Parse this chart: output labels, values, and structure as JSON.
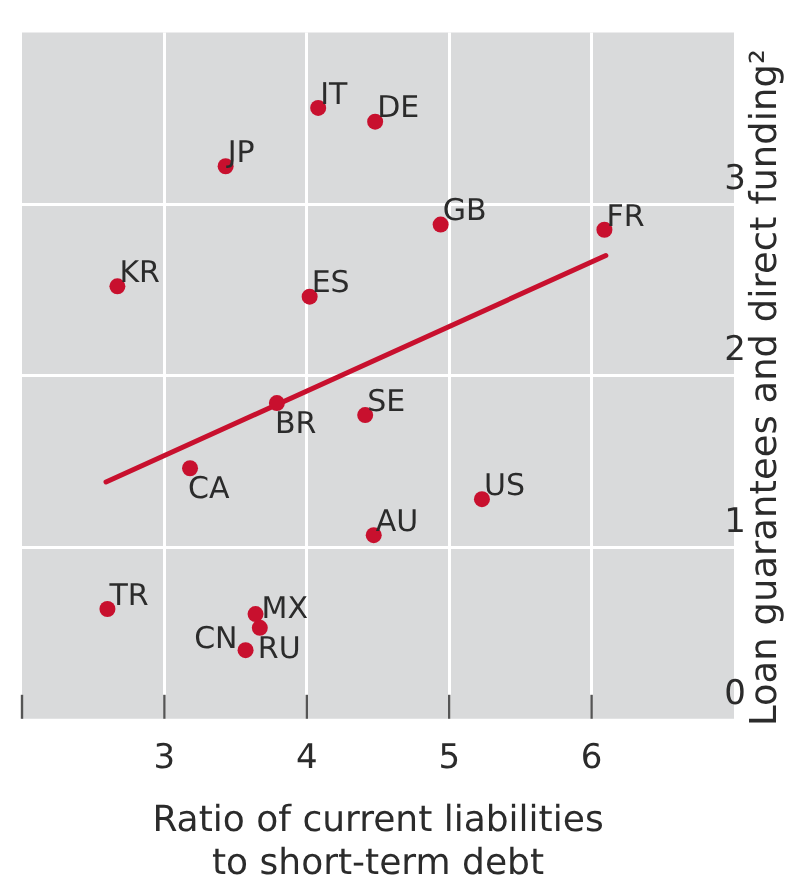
{
  "chart_data": {
    "type": "scatter",
    "xlabel": "Ratio of current liabilities to short-term debt",
    "ylabel": "Loan guarantees and direct funding²",
    "xlim": [
      2,
      7
    ],
    "ylim": [
      0,
      4
    ],
    "xticks": [
      {
        "value": 2,
        "label": null
      },
      3,
      4,
      5,
      6
    ],
    "yticks": [
      0,
      1,
      2,
      3
    ],
    "grid": true,
    "legend": false,
    "marker": "circle",
    "series": [
      {
        "name": "IT",
        "color": "#c8102e",
        "x": [
          4.08
        ],
        "values": [
          3.56
        ]
      },
      {
        "name": "DE",
        "color": "#c8102e",
        "x": [
          4.48
        ],
        "values": [
          3.48
        ]
      },
      {
        "name": "JP",
        "color": "#c8102e",
        "x": [
          3.43
        ],
        "values": [
          3.22
        ]
      },
      {
        "name": "GB",
        "color": "#c8102e",
        "x": [
          4.94
        ],
        "values": [
          2.88
        ]
      },
      {
        "name": "FR",
        "color": "#c8102e",
        "x": [
          6.09
        ],
        "values": [
          2.85
        ]
      },
      {
        "name": "KR",
        "color": "#c8102e",
        "x": [
          2.67
        ],
        "values": [
          2.52
        ]
      },
      {
        "name": "ES",
        "color": "#c8102e",
        "x": [
          4.02
        ],
        "values": [
          2.46
        ]
      },
      {
        "name": "BR",
        "color": "#c8102e",
        "x": [
          3.79
        ],
        "values": [
          1.84
        ]
      },
      {
        "name": "SE",
        "color": "#c8102e",
        "x": [
          4.41
        ],
        "values": [
          1.77
        ]
      },
      {
        "name": "CA",
        "color": "#c8102e",
        "x": [
          3.18
        ],
        "values": [
          1.46
        ]
      },
      {
        "name": "US",
        "color": "#c8102e",
        "x": [
          5.23
        ],
        "values": [
          1.28
        ]
      },
      {
        "name": "AU",
        "color": "#c8102e",
        "x": [
          4.47
        ],
        "values": [
          1.07
        ]
      },
      {
        "name": "TR",
        "color": "#c8102e",
        "x": [
          2.6
        ],
        "values": [
          0.64
        ]
      },
      {
        "name": "MX",
        "color": "#c8102e",
        "x": [
          3.64
        ],
        "values": [
          0.61
        ]
      },
      {
        "name": "CN",
        "color": "#c8102e",
        "x": [
          3.57
        ],
        "values": [
          0.4
        ]
      },
      {
        "name": "RU",
        "color": "#c8102e",
        "x": [
          3.67
        ],
        "values": [
          0.53
        ]
      },
      {
        "type": "line",
        "color": "#c8102e",
        "marker": "none",
        "x": [
          2.59,
          6.1
        ],
        "values": [
          1.38,
          2.7
        ]
      }
    ]
  }
}
